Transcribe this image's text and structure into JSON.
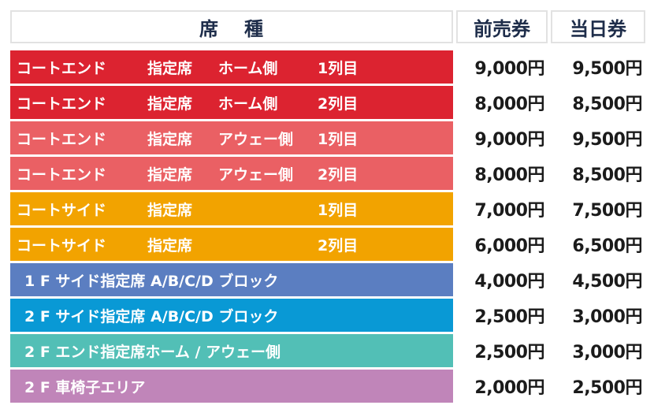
{
  "header": {
    "seat_a": "席",
    "seat_b": "種",
    "advance": "前売券",
    "same_day": "当日券"
  },
  "rows": [
    {
      "area": "コートエンド",
      "type": "指定席",
      "side": "ホーム側",
      "line": "1列目",
      "advance": "9,000円",
      "same_day": "9,500円",
      "name_color": "#dc2330",
      "price_color": "#ffffff"
    },
    {
      "area": "コートエンド",
      "type": "指定席",
      "side": "ホーム側",
      "line": "2列目",
      "advance": "8,000円",
      "same_day": "8,500円",
      "name_color": "#dc2330",
      "price_color": "#ffffff"
    },
    {
      "area": "コートエンド",
      "type": "指定席",
      "side": "アウェー側",
      "line": "1列目",
      "advance": "9,000円",
      "same_day": "9,500円",
      "name_color": "#ea6064",
      "price_color": "#ffffff"
    },
    {
      "area": "コートエンド",
      "type": "指定席",
      "side": "アウェー側",
      "line": "2列目",
      "advance": "8,000円",
      "same_day": "8,500円",
      "name_color": "#ea6064",
      "price_color": "#ffffff"
    },
    {
      "area": "コートサイド",
      "type": "指定席",
      "side": "",
      "line": "1列目",
      "advance": "7,000円",
      "same_day": "7,500円",
      "name_color": "#f2a300",
      "price_color": "#ffffff"
    },
    {
      "area": "コートサイド",
      "type": "指定席",
      "side": "",
      "line": "2列目",
      "advance": "6,000円",
      "same_day": "6,500円",
      "name_color": "#f2a300",
      "price_color": "#ffffff"
    }
  ],
  "groups": [
    {
      "label": "1 F サイド指定席 A/B/C/D ブロック",
      "advance": "4,000円",
      "same_day": "4,500円",
      "name_color": "#5b7ec1",
      "price_color": "#ffffff"
    },
    {
      "label": "2 F サイド指定席 A/B/C/D ブロック",
      "advance": "2,500円",
      "same_day": "3,000円",
      "name_color": "#0999d5",
      "price_color": "#ffffff"
    },
    {
      "label": "2 F エンド指定席ホーム / アウェー側",
      "advance": "2,500円",
      "same_day": "3,000円",
      "name_color": "#52bfb6",
      "price_color": "#ffffff"
    },
    {
      "label": "2 F 車椅子エリア",
      "advance": "2,000円",
      "same_day": "2,500円",
      "name_color": "#c085b9",
      "price_color": "#ffffff"
    }
  ]
}
